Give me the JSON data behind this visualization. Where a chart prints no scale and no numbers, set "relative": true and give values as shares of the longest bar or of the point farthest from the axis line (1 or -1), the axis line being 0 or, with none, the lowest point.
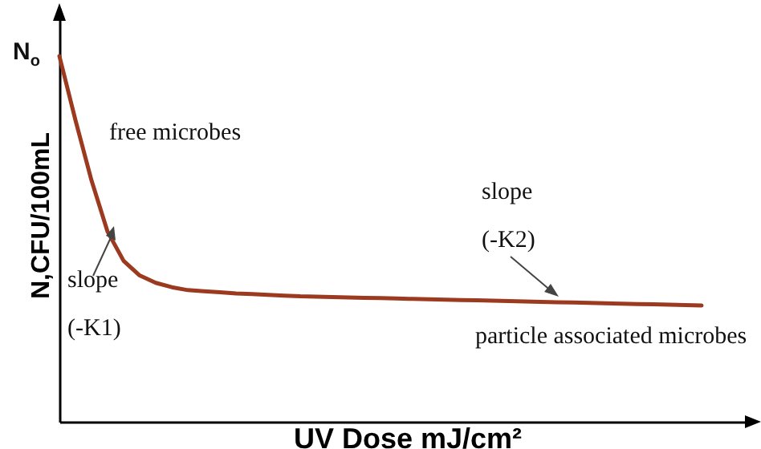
{
  "chart_data": {
    "type": "line",
    "relative": true,
    "xlabel": "UV Dose mJ/cm²",
    "ylabel": "N,CFU/100mL",
    "categories": [
      null,
      null,
      null,
      null,
      null,
      null,
      null,
      null,
      null,
      null,
      null,
      null,
      null,
      null,
      null,
      null,
      null,
      null,
      null,
      null,
      null,
      null,
      null,
      null,
      null,
      null,
      null,
      null,
      null,
      null,
      null,
      null,
      null,
      null,
      null,
      null,
      null,
      null,
      null,
      null,
      null
    ],
    "series": [
      {
        "color": "#9b3a1f",
        "values": [
          1.0,
          0.825,
          0.66,
          0.52,
          0.44,
          0.4,
          0.38,
          0.368,
          0.36,
          0.357,
          0.354,
          0.351,
          0.349,
          0.347,
          0.345,
          0.343,
          0.342,
          0.341,
          0.34,
          0.339,
          0.338,
          0.337,
          0.336,
          0.335,
          0.334,
          0.333,
          0.332,
          0.331,
          0.33,
          0.329,
          0.328,
          0.327,
          0.326,
          0.325,
          0.324,
          0.323,
          0.322,
          0.321,
          0.32,
          0.319,
          0.318
        ]
      }
    ],
    "annotations": [
      "N$_{o}$",
      "free microbes",
      "slope\n(-K1)",
      "slope\n(-K2)",
      "particle associated microbes"
    ]
  }
}
